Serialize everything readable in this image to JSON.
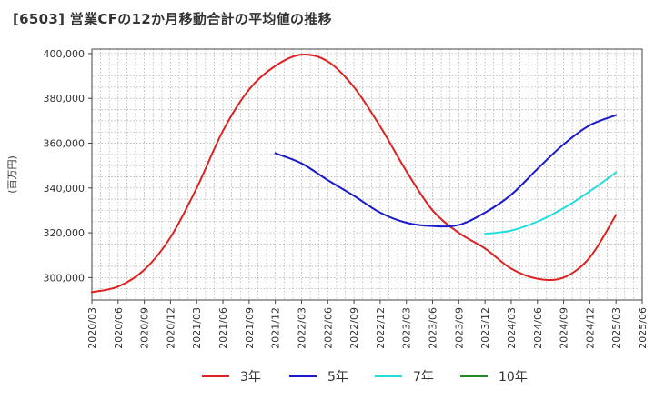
{
  "title": "[6503]  営業CFの12か月移動合計の平均値の推移",
  "chart_data": {
    "type": "line",
    "title": "[6503]  営業CFの12か月移動合計の平均値の推移",
    "xlabel": "",
    "ylabel": "(百万円)",
    "ylim": [
      290000,
      402000
    ],
    "y_ticks": [
      300000,
      320000,
      340000,
      360000,
      380000,
      400000
    ],
    "y_tick_labels": [
      "300,000",
      "320,000",
      "340,000",
      "360,000",
      "380,000",
      "400,000"
    ],
    "x_range": [
      "2020/03",
      "2025/06"
    ],
    "x_ticks": [
      "2020/03",
      "2020/06",
      "2020/09",
      "2020/12",
      "2021/03",
      "2021/06",
      "2021/09",
      "2021/12",
      "2022/03",
      "2022/06",
      "2022/09",
      "2022/12",
      "2023/03",
      "2023/06",
      "2023/09",
      "2023/12",
      "2024/03",
      "2024/06",
      "2024/09",
      "2024/12",
      "2025/03",
      "2025/06"
    ],
    "grid": true,
    "legend_position": "bottom",
    "series": [
      {
        "name": "3年",
        "color": "#dd2222",
        "points": [
          [
            "2020/03",
            293500
          ],
          [
            "2020/06",
            296000
          ],
          [
            "2020/09",
            303500
          ],
          [
            "2020/12",
            318000
          ],
          [
            "2021/03",
            340000
          ],
          [
            "2021/06",
            365500
          ],
          [
            "2021/09",
            384000
          ],
          [
            "2021/12",
            394500
          ],
          [
            "2022/03",
            399500
          ],
          [
            "2022/06",
            396500
          ],
          [
            "2022/09",
            385000
          ],
          [
            "2022/12",
            367500
          ],
          [
            "2023/03",
            347500
          ],
          [
            "2023/06",
            330000
          ],
          [
            "2023/09",
            320000
          ],
          [
            "2023/12",
            313000
          ],
          [
            "2024/03",
            304000
          ],
          [
            "2024/06",
            299500
          ],
          [
            "2024/09",
            300000
          ],
          [
            "2024/12",
            309000
          ],
          [
            "2025/03",
            328000
          ]
        ]
      },
      {
        "name": "5年",
        "color": "#1a1acc",
        "points": [
          [
            "2021/12",
            355500
          ],
          [
            "2022/03",
            351000
          ],
          [
            "2022/06",
            343500
          ],
          [
            "2022/09",
            336500
          ],
          [
            "2022/12",
            329000
          ],
          [
            "2023/03",
            324500
          ],
          [
            "2023/06",
            323000
          ],
          [
            "2023/09",
            323500
          ],
          [
            "2023/12",
            329000
          ],
          [
            "2024/03",
            337000
          ],
          [
            "2024/06",
            348500
          ],
          [
            "2024/09",
            359500
          ],
          [
            "2024/12",
            368000
          ],
          [
            "2025/03",
            372500
          ]
        ]
      },
      {
        "name": "7年",
        "color": "#22dddd",
        "points": [
          [
            "2023/12",
            319500
          ],
          [
            "2024/03",
            321000
          ],
          [
            "2024/06",
            325000
          ],
          [
            "2024/09",
            331000
          ],
          [
            "2024/12",
            338500
          ],
          [
            "2025/03",
            347000
          ]
        ]
      },
      {
        "name": "10年",
        "color": "#228822",
        "points": []
      }
    ]
  }
}
